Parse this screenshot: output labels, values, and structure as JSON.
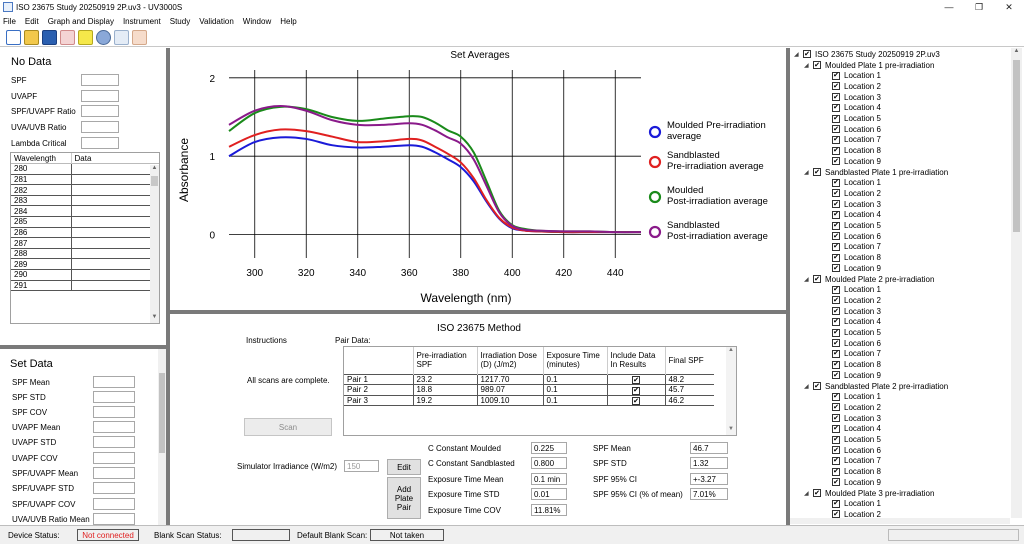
{
  "window": {
    "title": "ISO 23675 Study 20250919 2P.uv3 - UV3000S"
  },
  "menu": [
    "File",
    "Edit",
    "Graph and Display",
    "Instrument",
    "Study",
    "Validation",
    "Window",
    "Help"
  ],
  "toolbar_icons": [
    "new-file-icon",
    "open-folder-icon",
    "save-icon",
    "delete-icon",
    "report-icon",
    "settings-gear-icon",
    "copy-icon",
    "hand-icon"
  ],
  "left_top": {
    "title": "No Data",
    "fields": [
      {
        "label": "SPF",
        "value": ""
      },
      {
        "label": "UVAPF",
        "value": ""
      },
      {
        "label": "SPF/UVAPF Ratio",
        "value": ""
      },
      {
        "label": "UVA/UVB Ratio",
        "value": ""
      },
      {
        "label": "Lambda Critical",
        "value": ""
      }
    ],
    "grid_headers": [
      "Wavelength",
      "Data"
    ],
    "wavelengths": [
      "280",
      "281",
      "282",
      "283",
      "284",
      "285",
      "286",
      "287",
      "288",
      "289",
      "290",
      "291"
    ]
  },
  "left_bottom": {
    "title": "Set Data",
    "fields": [
      "SPF Mean",
      "SPF STD",
      "SPF COV",
      "UVAPF Mean",
      "UVAPF STD",
      "UVAPF COV",
      "SPF/UVAPF Mean",
      "SPF/UVAPF STD",
      "SPF/UVAPF COV",
      "UVA/UVB Ratio Mean"
    ]
  },
  "chart_data": {
    "type": "line",
    "title": "Set Averages",
    "xlabel": "Wavelength (nm)",
    "ylabel": "Absorbance",
    "xlim": [
      290,
      450
    ],
    "ylim": [
      -0.3,
      2.1
    ],
    "xticks": [
      300,
      320,
      340,
      360,
      380,
      400,
      420,
      440
    ],
    "yticks": [
      0,
      1,
      2
    ],
    "grid": true,
    "legend_position": "right",
    "series": [
      {
        "name": "Moulded Pre-irradiation average",
        "color": "#1a1ad8",
        "x": [
          290,
          300,
          310,
          320,
          330,
          340,
          350,
          360,
          365,
          370,
          375,
          380,
          385,
          390,
          395,
          400,
          405,
          410,
          420,
          430,
          440,
          450
        ],
        "y": [
          1.0,
          1.18,
          1.24,
          1.22,
          1.14,
          1.11,
          1.12,
          1.14,
          1.12,
          1.05,
          0.96,
          0.86,
          0.68,
          0.42,
          0.2,
          0.08,
          0.05,
          0.04,
          0.03,
          0.03,
          0.03,
          0.03
        ]
      },
      {
        "name": "Sandblasted Pre-irradiation average",
        "color": "#e02020",
        "x": [
          290,
          300,
          310,
          320,
          330,
          340,
          350,
          360,
          365,
          370,
          375,
          380,
          385,
          390,
          395,
          400,
          405,
          410,
          420,
          430,
          440,
          450
        ],
        "y": [
          1.12,
          1.27,
          1.34,
          1.32,
          1.25,
          1.18,
          1.19,
          1.22,
          1.2,
          1.12,
          1.03,
          0.92,
          0.72,
          0.44,
          0.21,
          0.09,
          0.05,
          0.04,
          0.03,
          0.03,
          0.03,
          0.03
        ]
      },
      {
        "name": "Moulded Post-irradiation average",
        "color": "#1a8a1a",
        "x": [
          290,
          300,
          310,
          320,
          330,
          340,
          350,
          360,
          365,
          370,
          375,
          380,
          385,
          390,
          395,
          400,
          405,
          410,
          420,
          430,
          440,
          450
        ],
        "y": [
          1.32,
          1.55,
          1.63,
          1.6,
          1.5,
          1.45,
          1.48,
          1.51,
          1.5,
          1.43,
          1.33,
          1.25,
          1.05,
          0.68,
          0.3,
          0.12,
          0.07,
          0.05,
          0.04,
          0.04,
          0.03,
          0.03
        ]
      },
      {
        "name": "Sandblasted Post-irradiation average",
        "color": "#8a1a8a",
        "x": [
          290,
          300,
          310,
          320,
          330,
          340,
          350,
          360,
          365,
          370,
          375,
          380,
          385,
          390,
          395,
          400,
          405,
          410,
          420,
          430,
          440,
          450
        ],
        "y": [
          1.4,
          1.58,
          1.64,
          1.58,
          1.46,
          1.4,
          1.4,
          1.42,
          1.4,
          1.33,
          1.24,
          1.16,
          0.96,
          0.62,
          0.28,
          0.11,
          0.06,
          0.05,
          0.04,
          0.04,
          0.03,
          0.03
        ]
      }
    ],
    "legend_lines": [
      [
        "Moulded Pre-irradiation",
        "average"
      ],
      [
        "Sandblasted",
        "Pre-irradiation average"
      ],
      [
        "Moulded",
        "Post-irradiation average"
      ],
      [
        "Sandblasted",
        "Post-irradiation average"
      ]
    ]
  },
  "method": {
    "title": "ISO 23675 Method",
    "instructions_label": "Instructions",
    "pair_data_label": "Pair Data:",
    "status_text": "All scans are complete.",
    "scan_button": "Scan",
    "table_headers": [
      "",
      "Pre-irradiation SPF",
      "Irradiation Dose (D) (J/m2)",
      "Exposure Time (minutes)",
      "Include Data In Results",
      "Final SPF"
    ],
    "rows": [
      {
        "name": "Pair 1",
        "pre_spf": "23.2",
        "dose": "1217.70",
        "exposure": "0.1",
        "include": "✔",
        "final_spf": "48.2"
      },
      {
        "name": "Pair 2",
        "pre_spf": "18.8",
        "dose": "989.07",
        "exposure": "0.1",
        "include": "✔",
        "final_spf": "45.7"
      },
      {
        "name": "Pair 3",
        "pre_spf": "19.2",
        "dose": "1009.10",
        "exposure": "0.1",
        "include": "✔",
        "final_spf": "46.2"
      }
    ],
    "irradiance_label": "Simulator Irradiance (W/m2)",
    "irradiance_value": "150",
    "edit_button": "Edit",
    "add_pair_button": [
      "Add",
      "Plate",
      "Pair"
    ],
    "constants": [
      {
        "label": "C Constant Moulded",
        "value": "0.225"
      },
      {
        "label": "C Constant Sandblasted",
        "value": "0.800"
      },
      {
        "label": "Exposure Time Mean",
        "value": "0.1 min"
      },
      {
        "label": "Exposure Time STD",
        "value": "0.01"
      },
      {
        "label": "Exposure Time COV",
        "value": "11.81%"
      }
    ],
    "spf_stats": [
      {
        "label": "SPF Mean",
        "value": "46.7"
      },
      {
        "label": "SPF STD",
        "value": "1.32"
      },
      {
        "label": "SPF 95% CI",
        "value": "+-3.27"
      },
      {
        "label": "SPF 95% CI (% of mean)",
        "value": "7.01%"
      }
    ]
  },
  "tree": {
    "root": "ISO 23675 Study 20250919 2P.uv3",
    "groups": [
      {
        "label": "Moulded Plate 1 pre-irradiation",
        "count": 9
      },
      {
        "label": "Sandblasted Plate 1 pre-irradiation",
        "count": 9
      },
      {
        "label": "Moulded Plate 2 pre-irradiation",
        "count": 9
      },
      {
        "label": "Sandblasted Plate 2 pre-irradiation",
        "count": 9
      },
      {
        "label": "Moulded Plate 3 pre-irradiation",
        "count": 2
      }
    ],
    "location_prefix": "Location "
  },
  "status": {
    "device_label": "Device Status:",
    "device_value": "Not connected",
    "device_color": "#e02020",
    "blank_label": "Blank Scan Status:",
    "blank_value": "",
    "default_blank_label": "Default Blank Scan:",
    "default_blank_value": "Not taken"
  }
}
